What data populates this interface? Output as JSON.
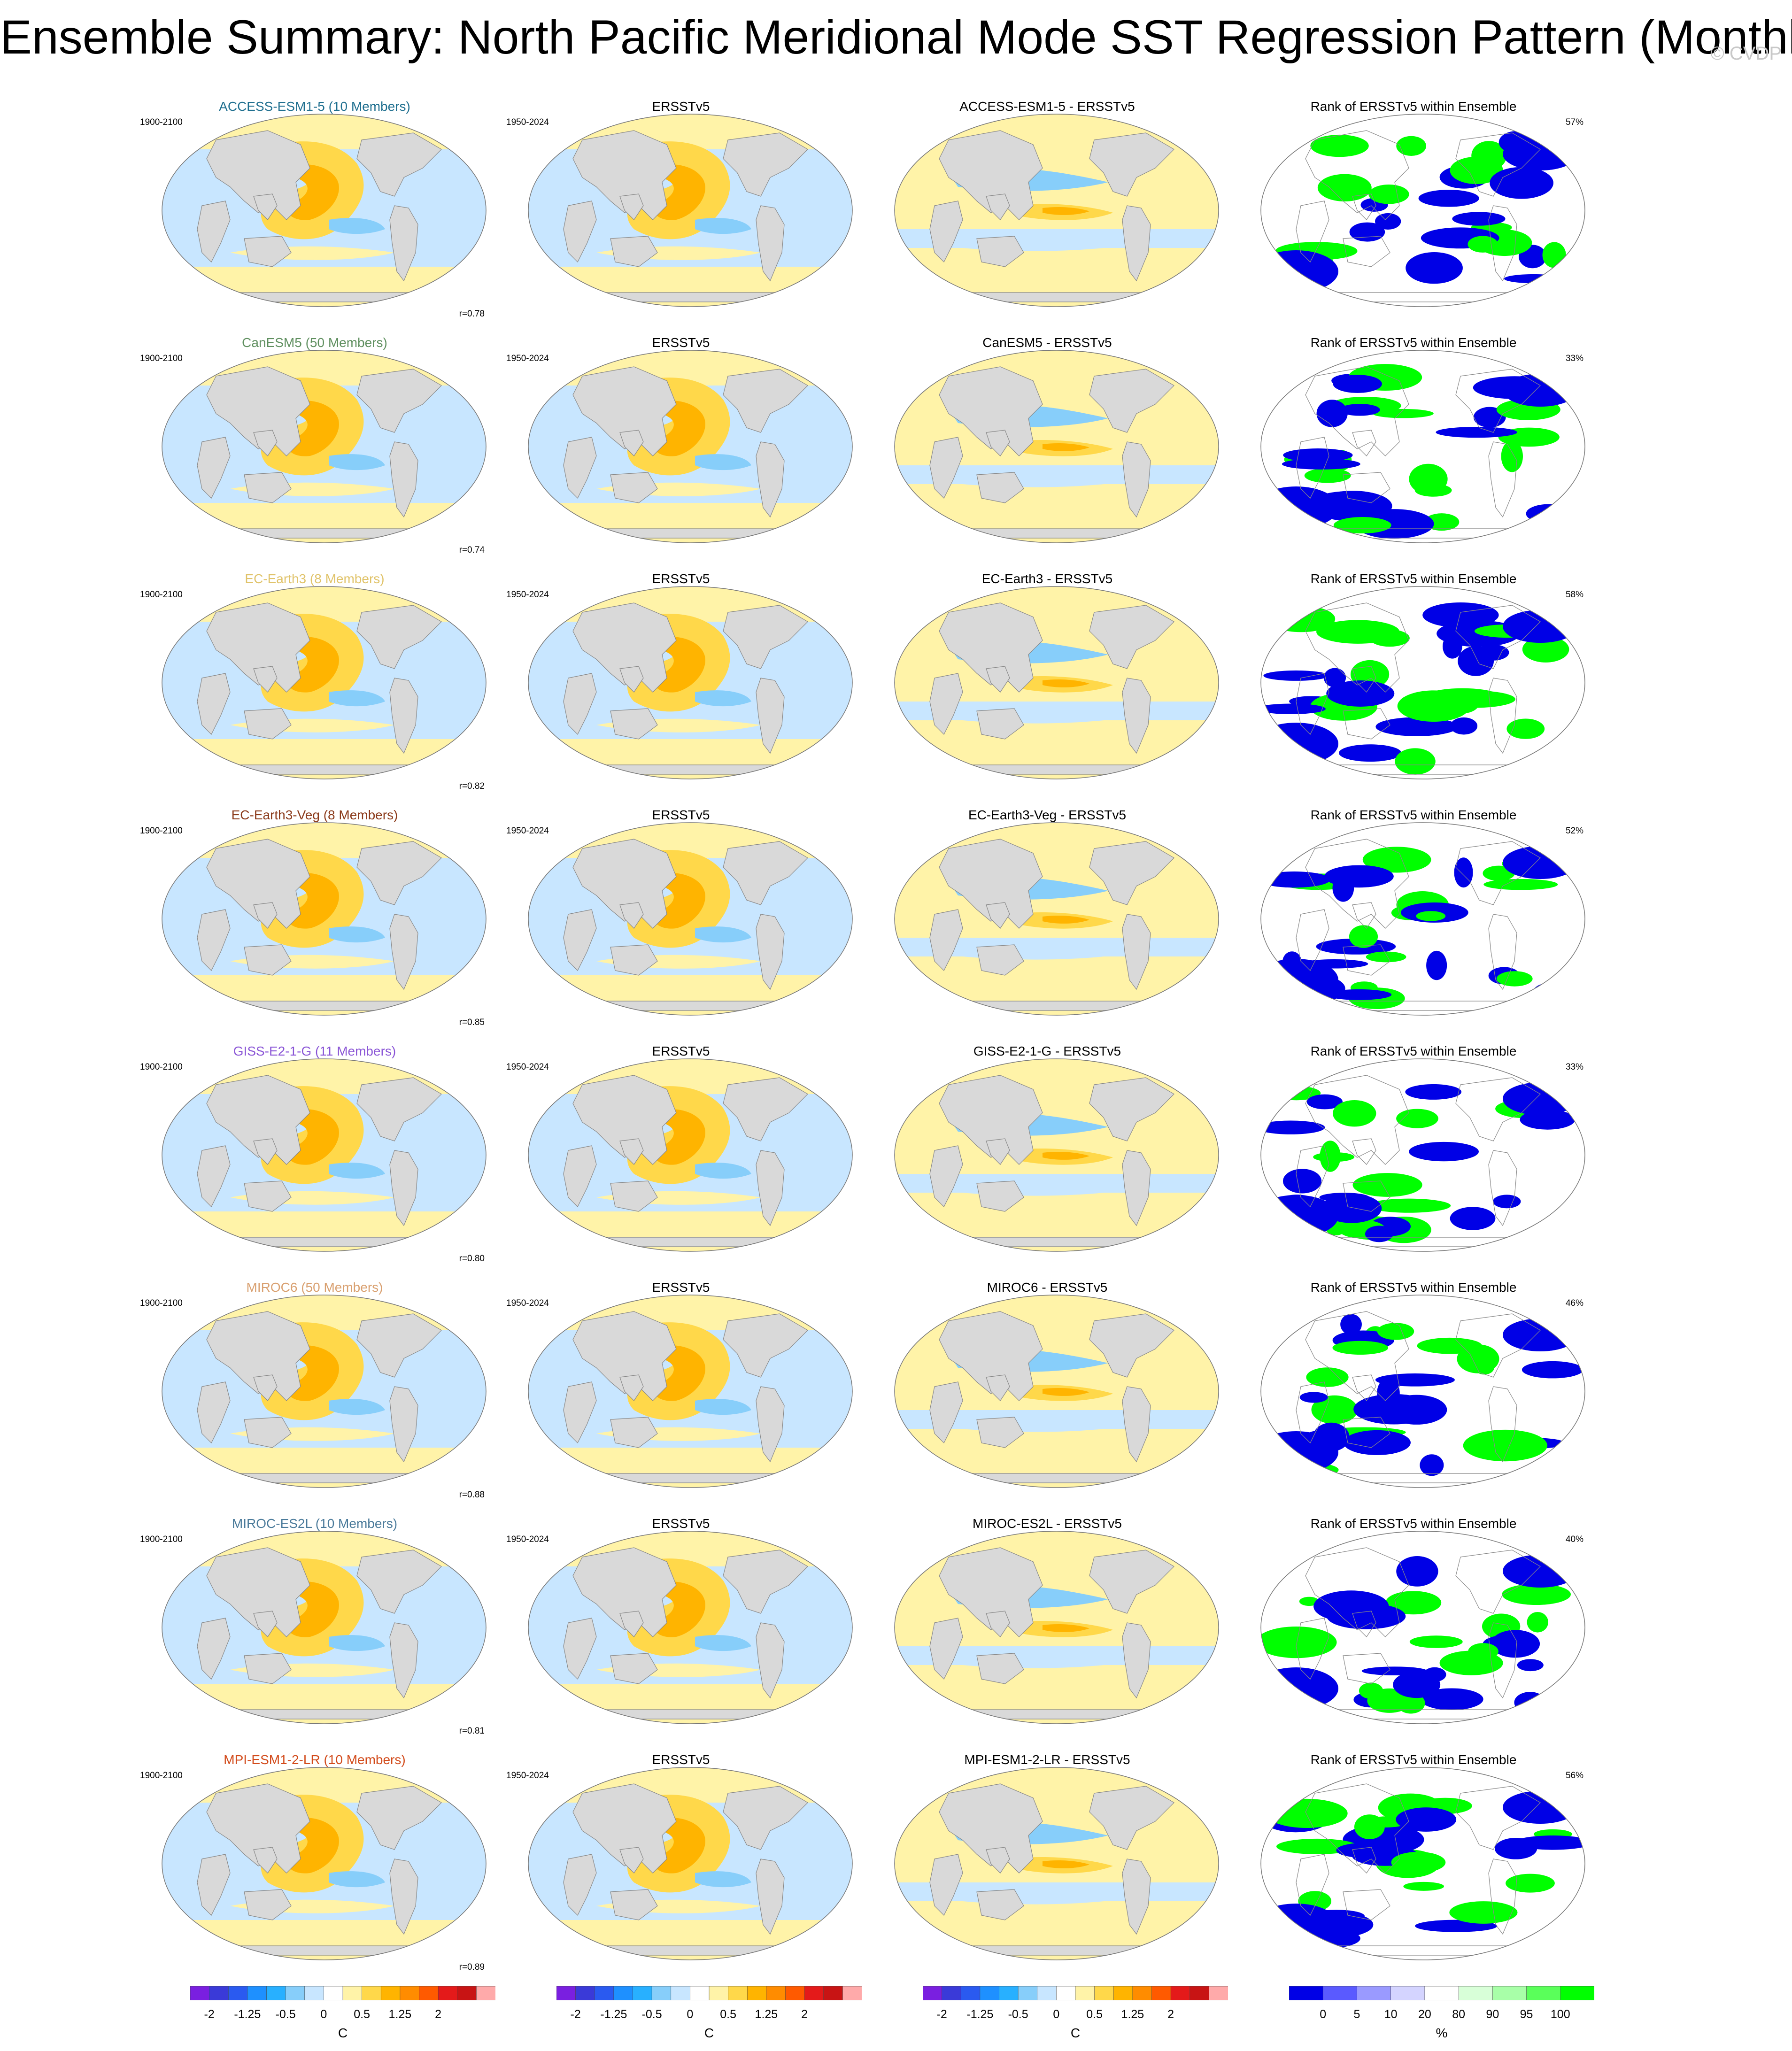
{
  "title": "Ensemble Summary: North Pacific Meridional Mode SST Regression Pattern (Monthly)",
  "watermark": "© CVDP",
  "rows": [
    {
      "model": "ACCESS-ESM1-5 (10 Members)",
      "model_color": "#1f6f8f",
      "model_period": "1900-2100",
      "obs": "ERSSTv5",
      "obs_period": "1950-2024",
      "diff": "ACCESS-ESM1-5 - ERSSTv5",
      "rank": "Rank of ERSSTv5 within Ensemble",
      "rank_pct": "57%",
      "corr": "r=0.78"
    },
    {
      "model": "CanESM5 (50 Members)",
      "model_color": "#5f8f5f",
      "model_period": "1900-2100",
      "obs": "ERSSTv5",
      "obs_period": "1950-2024",
      "diff": "CanESM5 - ERSSTv5",
      "rank": "Rank of ERSSTv5 within Ensemble",
      "rank_pct": "33%",
      "corr": "r=0.74"
    },
    {
      "model": "EC-Earth3 (8 Members)",
      "model_color": "#e0c36a",
      "model_period": "1900-2100",
      "obs": "ERSSTv5",
      "obs_period": "1950-2024",
      "diff": "EC-Earth3 - ERSSTv5",
      "rank": "Rank of ERSSTv5 within Ensemble",
      "rank_pct": "58%",
      "corr": "r=0.82"
    },
    {
      "model": "EC-Earth3-Veg (8 Members)",
      "model_color": "#8b3a1a",
      "model_period": "1900-2100",
      "obs": "ERSSTv5",
      "obs_period": "1950-2024",
      "diff": "EC-Earth3-Veg - ERSSTv5",
      "rank": "Rank of ERSSTv5 within Ensemble",
      "rank_pct": "52%",
      "corr": "r=0.85"
    },
    {
      "model": "GISS-E2-1-G (11 Members)",
      "model_color": "#8a55d6",
      "model_period": "1900-2100",
      "obs": "ERSSTv5",
      "obs_period": "1950-2024",
      "diff": "GISS-E2-1-G - ERSSTv5",
      "rank": "Rank of ERSSTv5 within Ensemble",
      "rank_pct": "33%",
      "corr": "r=0.80"
    },
    {
      "model": "MIROC6 (50 Members)",
      "model_color": "#d9a070",
      "model_period": "1900-2100",
      "obs": "ERSSTv5",
      "obs_period": "1950-2024",
      "diff": "MIROC6 - ERSSTv5",
      "rank": "Rank of ERSSTv5 within Ensemble",
      "rank_pct": "46%",
      "corr": "r=0.88"
    },
    {
      "model": "MIROC-ES2L (10 Members)",
      "model_color": "#4a7a9a",
      "model_period": "1900-2100",
      "obs": "ERSSTv5",
      "obs_period": "1950-2024",
      "diff": "MIROC-ES2L - ERSSTv5",
      "rank": "Rank of ERSSTv5 within Ensemble",
      "rank_pct": "40%",
      "corr": "r=0.81"
    },
    {
      "model": "MPI-ESM1-2-LR (10 Members)",
      "model_color": "#d24a1a",
      "model_period": "1900-2100",
      "obs": "ERSSTv5",
      "obs_period": "1950-2024",
      "diff": "MPI-ESM1-2-LR - ERSSTv5",
      "rank": "Rank of ERSSTv5 within Ensemble",
      "rank_pct": "56%",
      "corr": "r=0.89"
    }
  ],
  "colorbars": [
    {
      "title": "C",
      "ticks": [
        "-2",
        "-1.25",
        "-0.5",
        "0",
        "0.5",
        "1.25",
        "2"
      ],
      "colors": [
        "#7a1fe0",
        "#3a3ad8",
        "#2a5af0",
        "#1e90ff",
        "#28b0ff",
        "#87cefa",
        "#c8e6ff",
        "#ffffff",
        "#fff3a8",
        "#ffd84a",
        "#ffb400",
        "#ff8c00",
        "#ff5a00",
        "#e41a1a",
        "#c81414",
        "#ffaaaa"
      ]
    },
    {
      "title": "C",
      "ticks": [
        "-2",
        "-1.25",
        "-0.5",
        "0",
        "0.5",
        "1.25",
        "2"
      ],
      "colors": [
        "#7a1fe0",
        "#3a3ad8",
        "#2a5af0",
        "#1e90ff",
        "#28b0ff",
        "#87cefa",
        "#c8e6ff",
        "#ffffff",
        "#fff3a8",
        "#ffd84a",
        "#ffb400",
        "#ff8c00",
        "#ff5a00",
        "#e41a1a",
        "#c81414",
        "#ffaaaa"
      ]
    },
    {
      "title": "C",
      "ticks": [
        "-2",
        "-1.25",
        "-0.5",
        "0",
        "0.5",
        "1.25",
        "2"
      ],
      "colors": [
        "#7a1fe0",
        "#3a3ad8",
        "#2a5af0",
        "#1e90ff",
        "#28b0ff",
        "#87cefa",
        "#c8e6ff",
        "#ffffff",
        "#fff3a8",
        "#ffd84a",
        "#ffb400",
        "#ff8c00",
        "#ff5a00",
        "#e41a1a",
        "#c81414",
        "#ffaaaa"
      ]
    },
    {
      "title": "%",
      "ticks": [
        "0",
        "5",
        "10",
        "20",
        "80",
        "90",
        "95",
        "100"
      ],
      "colors": [
        "#0000e6",
        "#5a5aff",
        "#9a9aff",
        "#d4d4ff",
        "#ffffff",
        "#d8ffd8",
        "#a8ffa8",
        "#5aff5a",
        "#00ff00"
      ]
    }
  ],
  "palette": {
    "land": "#d9d9d9",
    "coast": "#888888",
    "warm_light": "#fff3a8",
    "warm": "#ffd84a",
    "warm_strong": "#ffb400",
    "cool_light": "#c8e6ff",
    "cool": "#87cefa",
    "cool_strong": "#28b0ff",
    "rank_low": "#0000e6",
    "rank_high": "#00ff00",
    "rank_mid": "#ffffff"
  }
}
